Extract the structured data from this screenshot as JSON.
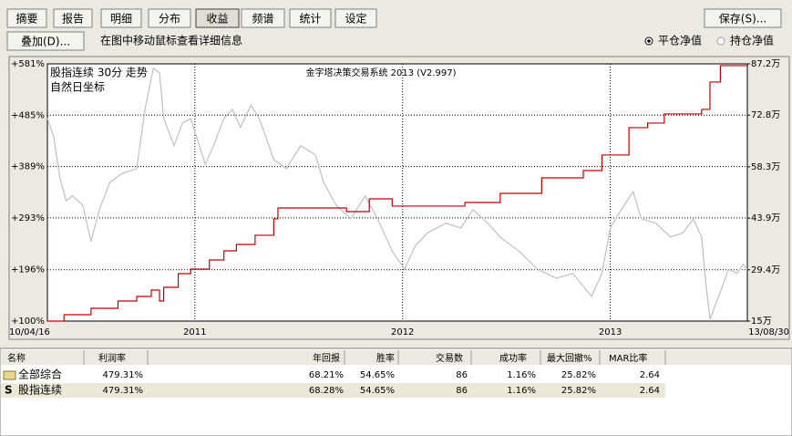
{
  "toolbar": {
    "tabs": [
      "摘要",
      "报告",
      "明细",
      "分布",
      "收益",
      "频谱",
      "统计",
      "设定"
    ],
    "save": "保存(S)...",
    "overlay": "叠加(D)...",
    "hint": "在图中移动鼠标查看详细信息",
    "radios": [
      "平仓净值",
      "持仓净值"
    ]
  },
  "chart_data": {
    "type": "line",
    "title": "金字塔决策交易系统 2013 (V2.997)",
    "annotations": [
      "自然日坐标"
    ],
    "xlim": [
      2010.29,
      2013.66
    ],
    "xticks": [
      {
        "value": 2010.29,
        "label": "10/04/16"
      },
      2011,
      2012,
      2013,
      {
        "value": 2013.66,
        "label": "13/08/30"
      }
    ],
    "ylim": [
      100,
      581
    ],
    "yticks": [
      {
        "value": 581,
        "label": "+581%"
      },
      {
        "value": 485,
        "label": "+485%"
      },
      {
        "value": 389,
        "label": "+389%"
      },
      {
        "value": 293,
        "label": "+293%"
      },
      {
        "value": 196,
        "label": "+196%"
      },
      {
        "value": 100,
        "label": "+100%"
      }
    ],
    "y2lim": [
      15,
      87.2
    ],
    "y2ticks": [
      {
        "value": 87.2,
        "label": "87.2万"
      },
      {
        "value": 72.8,
        "label": "72.8万"
      },
      {
        "value": 58.3,
        "label": "58.3万"
      },
      {
        "value": 43.9,
        "label": "43.9万"
      },
      {
        "value": 29.4,
        "label": "29.4万"
      },
      {
        "value": 15,
        "label": "15万"
      }
    ],
    "grid": true,
    "series": [
      {
        "name": "股指连续 30分 走势",
        "color": "#c0c0c0",
        "x": [
          2010.29,
          2010.32,
          2010.35,
          2010.38,
          2010.41,
          2010.46,
          2010.5,
          2010.54,
          2010.59,
          2010.65,
          2010.72,
          2010.76,
          2010.8,
          2010.83,
          2010.85,
          2010.9,
          2010.94,
          2010.98,
          2011.05,
          2011.09,
          2011.14,
          2011.18,
          2011.22,
          2011.27,
          2011.31,
          2011.38,
          2011.44,
          2011.51,
          2011.58,
          2011.62,
          2011.68,
          2011.75,
          2011.82,
          2011.88,
          2011.95,
          2012.01,
          2012.06,
          2012.12,
          2012.21,
          2012.28,
          2012.34,
          2012.41,
          2012.47,
          2012.56,
          2012.65,
          2012.74,
          2012.82,
          2012.91,
          2012.96,
          2013.0,
          2013.04,
          2013.11,
          2013.15,
          2013.22,
          2013.29,
          2013.35,
          2013.4,
          2013.44,
          2013.46,
          2013.48,
          2013.53,
          2013.57,
          2013.61,
          2013.64,
          2013.66
        ],
        "values": [
          479,
          445,
          368,
          325,
          334,
          317,
          249,
          308,
          359,
          376,
          385,
          496,
          573,
          564,
          479,
          428,
          470,
          479,
          393,
          428,
          479,
          496,
          462,
          504,
          479,
          402,
          385,
          428,
          411,
          359,
          317,
          291,
          334,
          291,
          231,
          197,
          240,
          265,
          283,
          274,
          308,
          283,
          257,
          231,
          197,
          180,
          189,
          146,
          189,
          274,
          300,
          342,
          291,
          283,
          257,
          265,
          291,
          257,
          172,
          103,
          155,
          197,
          189,
          206,
          197
        ]
      },
      {
        "color": "#c00000",
        "drawstyle": "steps-post",
        "x": [
          2010.29,
          2010.37,
          2010.5,
          2010.63,
          2010.72,
          2010.79,
          2010.83,
          2010.85,
          2010.92,
          2010.98,
          2011.07,
          2011.14,
          2011.2,
          2011.29,
          2011.38,
          2011.4,
          2011.6,
          2011.73,
          2011.84,
          2011.95,
          2012.12,
          2012.3,
          2012.47,
          2012.67,
          2012.87,
          2012.96,
          2013.09,
          2013.18,
          2013.26,
          2013.44,
          2013.48,
          2013.53,
          2013.66
        ],
        "values": [
          100,
          111.9,
          123.9,
          137.5,
          146.1,
          158.0,
          137.5,
          163.1,
          188.7,
          197.2,
          214.3,
          231.4,
          243.3,
          260.4,
          291.1,
          311.5,
          311.5,
          304.7,
          328.6,
          315.0,
          315.0,
          321.8,
          338.8,
          367.8,
          381.5,
          410.5,
          461.7,
          470.2,
          487.3,
          495.8,
          547.0,
          577.7,
          577.7
        ]
      }
    ]
  },
  "table": {
    "header": [
      "名称",
      "利润率",
      "年回报",
      "胜率",
      "交易数",
      "成功率",
      "最大回撤%",
      "MAR比率"
    ],
    "rows": [
      [
        "全部综合",
        "479.31%",
        "68.21%",
        "54.65%",
        "86",
        "1.16%",
        "25.82%",
        "2.64"
      ],
      [
        "股指连续",
        "479.31%",
        "68.28%",
        "54.65%",
        "86",
        "1.16%",
        "25.82%",
        "2.64"
      ]
    ]
  }
}
